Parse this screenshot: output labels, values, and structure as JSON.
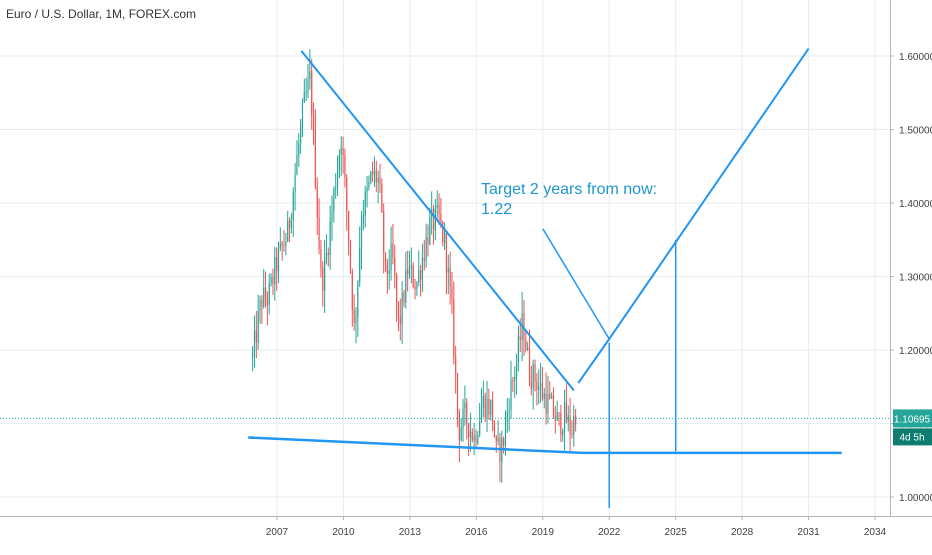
{
  "chart_data": {
    "type": "candlestick",
    "title": "Euro / U.S. Dollar, 1M, FOREX.com",
    "ylim": [
      0.97,
      1.67
    ],
    "xlim": [
      2004.0,
      2036.0
    ],
    "y_ticks": [
      {
        "value": 1.0,
        "label": "1.00000"
      },
      {
        "value": 1.1,
        "label": "1.10000"
      },
      {
        "value": 1.2,
        "label": "1.20000"
      },
      {
        "value": 1.3,
        "label": "1.30000"
      },
      {
        "value": 1.4,
        "label": "1.40000"
      },
      {
        "value": 1.5,
        "label": "1.50000"
      },
      {
        "value": 1.6,
        "label": "1.60000"
      }
    ],
    "x_ticks": [
      {
        "value": 2007,
        "label": "2007"
      },
      {
        "value": 2010,
        "label": "2010"
      },
      {
        "value": 2013,
        "label": "2013"
      },
      {
        "value": 2016,
        "label": "2016"
      },
      {
        "value": 2019,
        "label": "2019"
      },
      {
        "value": 2022,
        "label": "2022"
      },
      {
        "value": 2025,
        "label": "2025"
      },
      {
        "value": 2028,
        "label": "2028"
      },
      {
        "value": 2031,
        "label": "2031"
      },
      {
        "value": 2034,
        "label": "2034"
      }
    ],
    "price_anchors": [
      [
        2005.9,
        1.19
      ],
      [
        2006.3,
        1.27
      ],
      [
        2006.6,
        1.27
      ],
      [
        2007.0,
        1.32
      ],
      [
        2007.5,
        1.36
      ],
      [
        2007.9,
        1.46
      ],
      [
        2008.2,
        1.53
      ],
      [
        2008.5,
        1.57
      ],
      [
        2008.8,
        1.4
      ],
      [
        2009.0,
        1.29
      ],
      [
        2009.2,
        1.32
      ],
      [
        2009.6,
        1.42
      ],
      [
        2009.9,
        1.49
      ],
      [
        2010.2,
        1.37
      ],
      [
        2010.5,
        1.22
      ],
      [
        2010.8,
        1.38
      ],
      [
        2011.3,
        1.44
      ],
      [
        2011.6,
        1.43
      ],
      [
        2011.9,
        1.3
      ],
      [
        2012.2,
        1.33
      ],
      [
        2012.5,
        1.23
      ],
      [
        2012.9,
        1.31
      ],
      [
        2013.3,
        1.29
      ],
      [
        2013.6,
        1.33
      ],
      [
        2013.9,
        1.37
      ],
      [
        2014.3,
        1.38
      ],
      [
        2014.6,
        1.34
      ],
      [
        2014.9,
        1.25
      ],
      [
        2015.2,
        1.09
      ],
      [
        2015.5,
        1.11
      ],
      [
        2015.9,
        1.08
      ],
      [
        2016.3,
        1.13
      ],
      [
        2016.7,
        1.12
      ],
      [
        2016.9,
        1.06
      ],
      [
        2017.2,
        1.07
      ],
      [
        2017.5,
        1.14
      ],
      [
        2017.8,
        1.18
      ],
      [
        2018.1,
        1.24
      ],
      [
        2018.4,
        1.17
      ],
      [
        2018.7,
        1.16
      ],
      [
        2019.0,
        1.14
      ],
      [
        2019.4,
        1.12
      ],
      [
        2019.7,
        1.1
      ],
      [
        2020.0,
        1.11
      ],
      [
        2020.3,
        1.09
      ],
      [
        2020.5,
        1.12
      ]
    ],
    "current_price": {
      "value": 1.10695,
      "label": "1.10695",
      "countdown": "4d 5h"
    },
    "annotation": {
      "text_lines": [
        "Target 2 years from now:",
        "1.22"
      ]
    },
    "drawings": {
      "descending_trendline": [
        [
          2008.1,
          1.607
        ],
        [
          2020.4,
          1.145
        ]
      ],
      "support_line": [
        [
          2005.7,
          1.081
        ],
        [
          2020.8,
          1.06
        ],
        [
          2032.5,
          1.06
        ]
      ],
      "v_projection": [
        [
          2020.6,
          1.155
        ],
        [
          2022.0,
          1.215
        ],
        [
          2031.0,
          1.61
        ]
      ],
      "pointer_line": [
        [
          2019.0,
          1.365
        ],
        [
          2022.0,
          1.215
        ]
      ],
      "vertical_line_a": [
        [
          2022.0,
          1.21
        ],
        [
          2022.0,
          0.985
        ]
      ],
      "vertical_line_b": [
        [
          2025.0,
          1.35
        ],
        [
          2025.0,
          1.062
        ]
      ]
    },
    "colors": {
      "up": "#26a69a",
      "down": "#ef5350",
      "drawing": "#2196f3",
      "current_price": "#26a69a",
      "grid": "#e7eef3"
    }
  }
}
